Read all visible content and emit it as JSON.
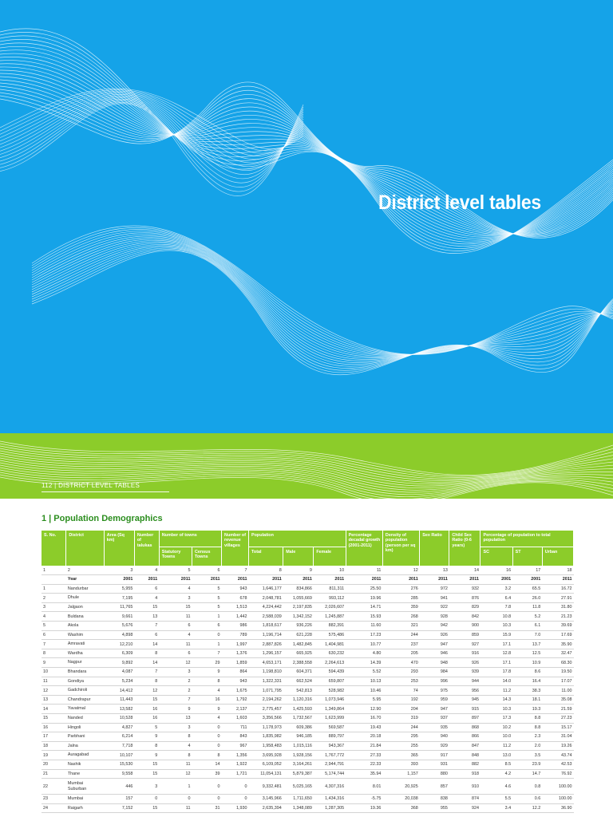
{
  "hero": {
    "title": "District level tables",
    "footer": "112  |  DISTRICT LEVEL TABLES",
    "colors": {
      "blue": "#15a3e8",
      "green": "#8ccc2a",
      "wave": "#ffffff"
    }
  },
  "section": {
    "title": "1 | Population Demographics"
  },
  "chart_data": {
    "type": "table",
    "title": "1 | Population Demographics",
    "header_top": {
      "sno": "S. No.",
      "district": "District",
      "area": "Area (Sq km)",
      "talukas": "Number of talukas",
      "towns": "Number of towns",
      "villages": "Number of revenue villages",
      "population": "Population",
      "growth": "Percentage decadal growth (2001-2011)",
      "density": "Density of population (person per sq km)",
      "sexratio": "Sex Ratio",
      "childsex": "Child Sex Ratio (0-6 years)",
      "pct": "Percentage of population to total population"
    },
    "header_sub": {
      "statutory": "Statutory Towns",
      "census": "Census Towns",
      "total": "Total",
      "male": "Male",
      "female": "Female",
      "sc": "SC",
      "st": "ST",
      "urban": "Urban"
    },
    "column_index": [
      "1",
      "2",
      "3",
      "4",
      "5",
      "6",
      "7",
      "8",
      "9",
      "10",
      "11",
      "12",
      "13",
      "14",
      "16",
      "17",
      "18"
    ],
    "years": [
      "Year",
      "2001",
      "2011",
      "2011",
      "2011",
      "2011",
      "2011",
      "2011",
      "2011",
      "2011",
      "2011",
      "2011",
      "2011",
      "2001",
      "2001",
      "2011"
    ],
    "rows": [
      [
        "1",
        "Nandurbar",
        "5,955",
        "6",
        "4",
        "5",
        "943",
        "1,646,177",
        "834,866",
        "811,311",
        "25.50",
        "276",
        "972",
        "932",
        "3.2",
        "65.5",
        "16.72"
      ],
      [
        "2",
        "Dhule",
        "7,195",
        "4",
        "3",
        "5",
        "678",
        "2,048,781",
        "1,055,669",
        "993,112",
        "19.96",
        "285",
        "941",
        "876",
        "6.4",
        "26.0",
        "27.91"
      ],
      [
        "3",
        "Jalgaon",
        "11,765",
        "15",
        "15",
        "5",
        "1,513",
        "4,224,442",
        "2,197,835",
        "2,026,607",
        "14.71",
        "359",
        "922",
        "829",
        "7.8",
        "11.8",
        "31.80"
      ],
      [
        "4",
        "Buldana",
        "9,661",
        "13",
        "11",
        "1",
        "1,442",
        "2,588,039",
        "1,342,152",
        "1,245,887",
        "15.93",
        "268",
        "928",
        "842",
        "10.8",
        "5.2",
        "21.23"
      ],
      [
        "5",
        "Akola",
        "5,676",
        "7",
        "6",
        "6",
        "986",
        "1,818,617",
        "936,226",
        "882,391",
        "11.60",
        "321",
        "942",
        "900",
        "10.3",
        "6.1",
        "39.69"
      ],
      [
        "6",
        "Washim",
        "4,898",
        "6",
        "4",
        "0",
        "789",
        "1,196,714",
        "621,228",
        "575,486",
        "17.23",
        "244",
        "926",
        "859",
        "15.9",
        "7.0",
        "17.69"
      ],
      [
        "7",
        "Amravati",
        "12,210",
        "14",
        "11",
        "1",
        "1,997",
        "2,887,826",
        "1,482,845",
        "1,404,981",
        "10.77",
        "237",
        "947",
        "927",
        "17.1",
        "13.7",
        "35.90"
      ],
      [
        "8",
        "Wardha",
        "6,309",
        "8",
        "6",
        "7",
        "1,376",
        "1,296,157",
        "665,925",
        "630,232",
        "4.80",
        "205",
        "946",
        "916",
        "12.8",
        "12.5",
        "32.47"
      ],
      [
        "9",
        "Nagpur",
        "9,892",
        "14",
        "12",
        "29",
        "1,859",
        "4,653,171",
        "2,388,558",
        "2,264,613",
        "14.39",
        "470",
        "948",
        "926",
        "17.1",
        "10.9",
        "68.30"
      ],
      [
        "10",
        "Bhandara",
        "4,087",
        "7",
        "3",
        "9",
        "864",
        "1,198,810",
        "604,371",
        "594,439",
        "5.52",
        "293",
        "984",
        "939",
        "17.8",
        "8.6",
        "19.50"
      ],
      [
        "11",
        "Gondiya",
        "5,234",
        "8",
        "2",
        "8",
        "943",
        "1,322,331",
        "662,524",
        "659,807",
        "10.13",
        "253",
        "996",
        "944",
        "14.0",
        "16.4",
        "17.07"
      ],
      [
        "12",
        "Gadchiroli",
        "14,412",
        "12",
        "2",
        "4",
        "1,675",
        "1,071,795",
        "542,813",
        "528,982",
        "10.46",
        "74",
        "975",
        "956",
        "11.2",
        "38.3",
        "11.00"
      ],
      [
        "13",
        "Chandrapur",
        "11,443",
        "15",
        "7",
        "16",
        "1,792",
        "2,194,262",
        "1,120,316",
        "1,073,946",
        "5.95",
        "192",
        "959",
        "945",
        "14.3",
        "18.1",
        "35.08"
      ],
      [
        "14",
        "Yavatmal",
        "13,582",
        "16",
        "9",
        "9",
        "2,137",
        "2,775,457",
        "1,425,593",
        "1,349,864",
        "12.90",
        "204",
        "947",
        "915",
        "10.3",
        "19.3",
        "21.59"
      ],
      [
        "15",
        "Nanded",
        "10,528",
        "16",
        "13",
        "4",
        "1,603",
        "3,356,566",
        "1,732,567",
        "1,623,999",
        "16.70",
        "319",
        "937",
        "897",
        "17.3",
        "8.8",
        "27.23"
      ],
      [
        "16",
        "Hingoli",
        "4,827",
        "5",
        "3",
        "0",
        "711",
        "1,178,973",
        "609,386",
        "569,587",
        "19.43",
        "244",
        "935",
        "868",
        "10.2",
        "8.8",
        "15.17"
      ],
      [
        "17",
        "Parbhani",
        "6,214",
        "9",
        "8",
        "0",
        "843",
        "1,835,982",
        "946,185",
        "889,797",
        "20.18",
        "295",
        "940",
        "866",
        "10.0",
        "2.3",
        "31.04"
      ],
      [
        "18",
        "Jalna",
        "7,718",
        "8",
        "4",
        "0",
        "967",
        "1,958,483",
        "1,015,116",
        "943,367",
        "21.84",
        "255",
        "929",
        "847",
        "11.2",
        "2.0",
        "19.26"
      ],
      [
        "19",
        "Auragabad",
        "10,107",
        "9",
        "8",
        "8",
        "1,356",
        "3,695,928",
        "1,928,156",
        "1,767,772",
        "27.33",
        "365",
        "917",
        "848",
        "13.0",
        "3.5",
        "43.74"
      ],
      [
        "20",
        "Nashik",
        "15,530",
        "15",
        "11",
        "14",
        "1,922",
        "6,109,052",
        "3,164,261",
        "2,944,791",
        "22.33",
        "393",
        "931",
        "882",
        "8.5",
        "23.9",
        "42.53"
      ],
      [
        "21",
        "Thane",
        "9,558",
        "15",
        "12",
        "39",
        "1,721",
        "11,054,131",
        "5,879,387",
        "5,174,744",
        "35.94",
        "1,157",
        "880",
        "918",
        "4.2",
        "14.7",
        "76.92"
      ],
      [
        "22",
        "Mumbai Suburban",
        "446",
        "3",
        "1",
        "0",
        "0",
        "9,332,481",
        "5,025,165",
        "4,307,316",
        "8.01",
        "20,925",
        "857",
        "910",
        "4.6",
        "0.8",
        "100.00"
      ],
      [
        "23",
        "Mumbai",
        "157",
        "0",
        "0",
        "0",
        "0",
        "3,145,966",
        "1,711,650",
        "1,434,316",
        "-5.75",
        "20,038",
        "838",
        "874",
        "5.5",
        "0.6",
        "100.00"
      ],
      [
        "24",
        "Raigarh",
        "7,152",
        "15",
        "11",
        "31",
        "1,930",
        "2,635,394",
        "1,348,089",
        "1,287,305",
        "19.36",
        "368",
        "955",
        "924",
        "3.4",
        "12.2",
        "36.90"
      ]
    ]
  }
}
